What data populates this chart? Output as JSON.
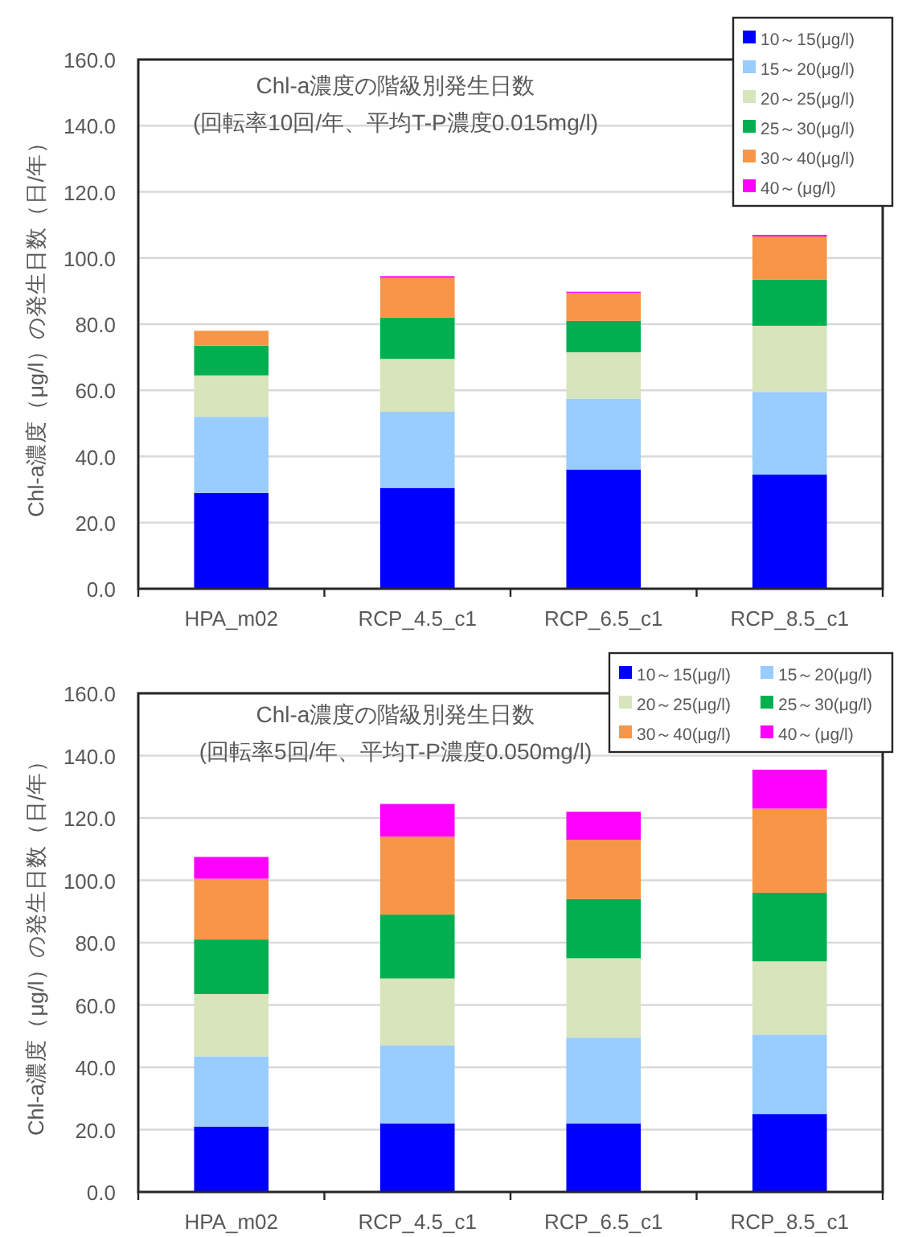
{
  "chart_data": [
    {
      "type": "bar",
      "stacked": true,
      "title": "Chl-a濃度の階級別発生日数",
      "subtitle": "(回転率10回/年、平均T-P濃度0.015mg/l)",
      "ylabel": "Chl-a濃度（μg/l）の発生日数（日/年）",
      "categories": [
        "HPA_m02",
        "RCP_4.5_c1",
        "RCP_6.5_c1",
        "RCP_8.5_c1"
      ],
      "series": [
        {
          "name": "10～15(μg/l)",
          "color": "#0000ff",
          "values": [
            29,
            30.5,
            36,
            34.5
          ]
        },
        {
          "name": "15～20(μg/l)",
          "color": "#99ccff",
          "values": [
            23,
            23,
            21.5,
            25
          ]
        },
        {
          "name": "20～25(μg/l)",
          "color": "#d8e4bc",
          "values": [
            12.5,
            16,
            14,
            20
          ]
        },
        {
          "name": "25～30(μg/l)",
          "color": "#00b050",
          "values": [
            9,
            12.5,
            9.5,
            14
          ]
        },
        {
          "name": "30～40(μg/l)",
          "color": "#f79646",
          "values": [
            4.5,
            12,
            8.5,
            13
          ]
        },
        {
          "name": "40～(μg/l)",
          "color": "#ff00ff",
          "values": [
            0,
            0.5,
            0.3,
            0.5
          ]
        }
      ],
      "ylim": [
        0,
        160
      ],
      "yticks": [
        {
          "value": 0,
          "label": "0.0"
        },
        {
          "value": 20,
          "label": "20.0"
        },
        {
          "value": 40,
          "label": "40.0"
        },
        {
          "value": 60,
          "label": "60.0"
        },
        {
          "value": 80,
          "label": "80.0"
        },
        {
          "value": 100,
          "label": "100.0"
        },
        {
          "value": 120,
          "label": "120.0"
        },
        {
          "value": 140,
          "label": "140.0"
        },
        {
          "value": 160,
          "label": "160.0"
        }
      ],
      "grid": "y",
      "legend": "top right"
    },
    {
      "type": "bar",
      "stacked": true,
      "title": "Chl-a濃度の階級別発生日数",
      "subtitle": "(回転率5回/年、平均T-P濃度0.050mg/l)",
      "ylabel": "Chl-a濃度（μg/l）の発生日数（日/年）",
      "categories": [
        "HPA_m02",
        "RCP_4.5_c1",
        "RCP_6.5_c1",
        "RCP_8.5_c1"
      ],
      "series": [
        {
          "name": "10～15(μg/l)",
          "color": "#0000ff",
          "values": [
            21,
            22,
            22,
            25
          ]
        },
        {
          "name": "15～20(μg/l)",
          "color": "#99ccff",
          "values": [
            22.5,
            25,
            27.5,
            25.5
          ]
        },
        {
          "name": "20～25(μg/l)",
          "color": "#d8e4bc",
          "values": [
            20,
            21.5,
            25.5,
            23.5
          ]
        },
        {
          "name": "25～30(μg/l)",
          "color": "#00b050",
          "values": [
            17.5,
            20.5,
            19,
            22
          ]
        },
        {
          "name": "30～40(μg/l)",
          "color": "#f79646",
          "values": [
            19.5,
            25,
            19,
            27
          ]
        },
        {
          "name": "40～(μg/l)",
          "color": "#ff00ff",
          "values": [
            7,
            10.5,
            9,
            12.5
          ]
        }
      ],
      "ylim": [
        0,
        160
      ],
      "yticks": [
        {
          "value": 0,
          "label": "0.0"
        },
        {
          "value": 20,
          "label": "20.0"
        },
        {
          "value": 40,
          "label": "40.0"
        },
        {
          "value": 60,
          "label": "60.0"
        },
        {
          "value": 80,
          "label": "80.0"
        },
        {
          "value": 100,
          "label": "100.0"
        },
        {
          "value": 120,
          "label": "120.0"
        },
        {
          "value": 140,
          "label": "140.0"
        },
        {
          "value": 160,
          "label": "160.0"
        }
      ],
      "grid": "y",
      "legend": "top right"
    }
  ]
}
